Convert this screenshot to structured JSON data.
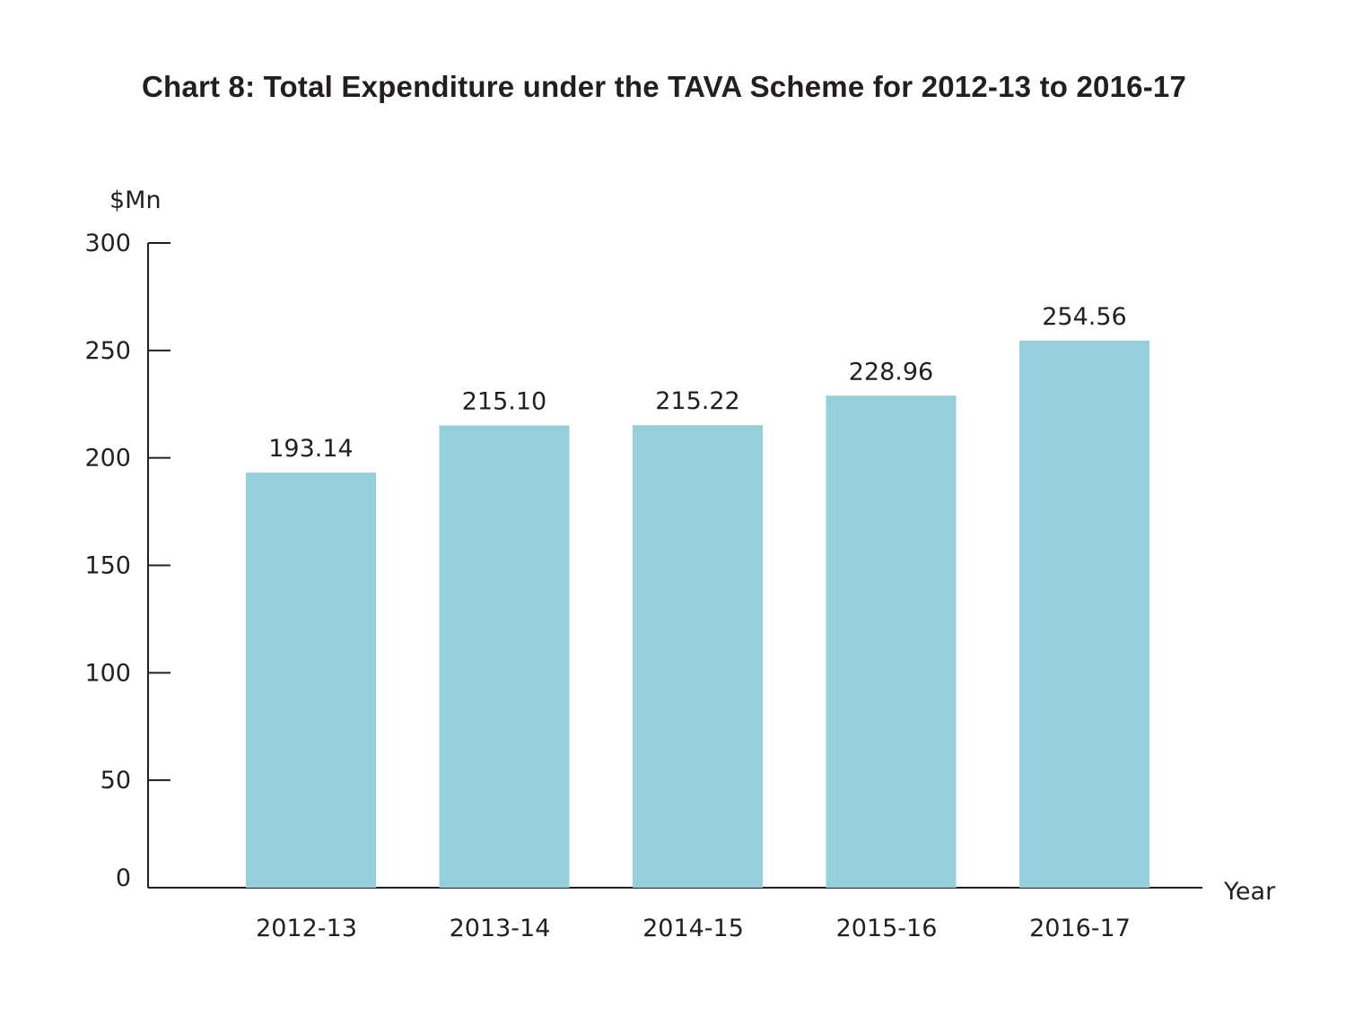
{
  "chart_data": {
    "type": "bar",
    "title": "Chart 8: Total Expenditure under the TAVA Scheme for 2012-13 to 2016-17",
    "ylabel": "$Mn",
    "xlabel": "Year",
    "ylim": [
      0,
      300
    ],
    "yticks": [
      0,
      50,
      100,
      150,
      200,
      250,
      300
    ],
    "categories": [
      "2012-13",
      "2013-14",
      "2014-15",
      "2015-16",
      "2016-17"
    ],
    "values": [
      193.14,
      215.1,
      215.22,
      228.96,
      254.56
    ],
    "value_labels": [
      "193.14",
      "215.10",
      "215.22",
      "228.96",
      "254.56"
    ],
    "bar_color": "#95cfdc",
    "axis_color": "#231f20",
    "grid": false,
    "legend": "none"
  }
}
